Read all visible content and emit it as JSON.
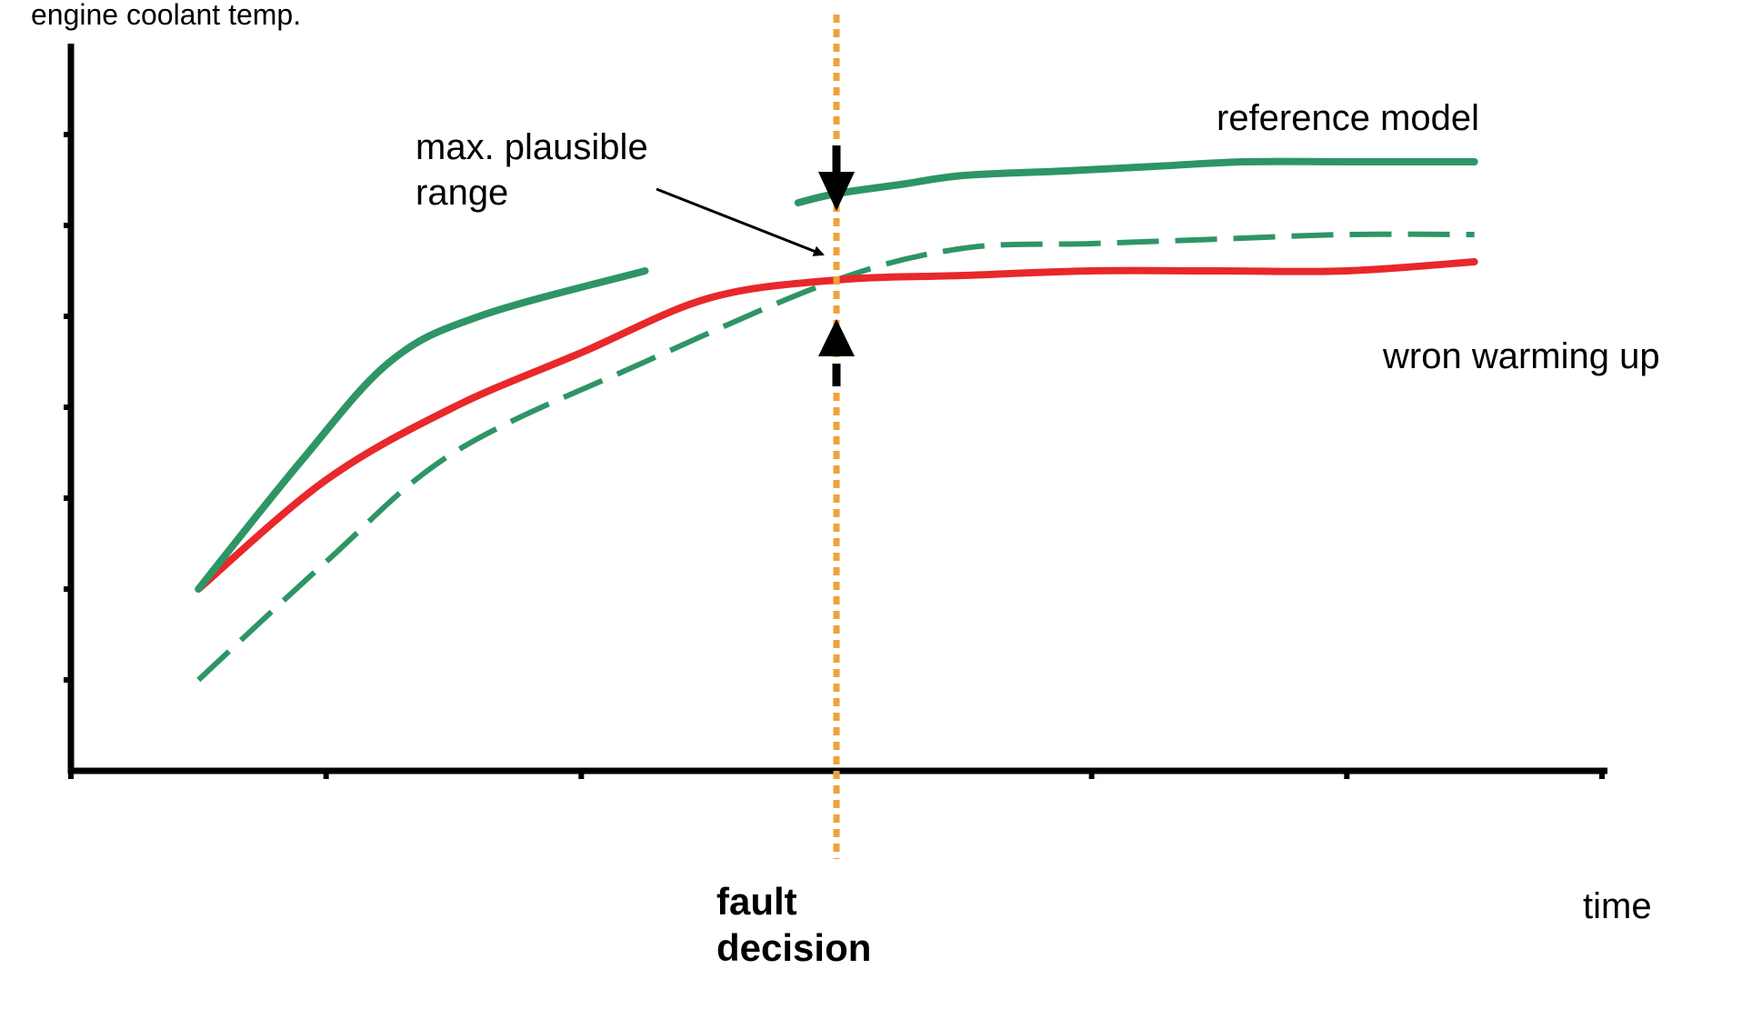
{
  "chart_data": {
    "type": "line",
    "ylabel": "engine coolant temp.",
    "xlabel": "time",
    "xlim": [
      0,
      12
    ],
    "ylim": [
      0,
      8
    ],
    "grid": false,
    "series": [
      {
        "name": "reference model",
        "color": "#2e9565",
        "style": "solid",
        "segments": [
          {
            "x": [
              1.0,
              1.8,
              2.5,
              3.2,
              4.5
            ],
            "y": [
              2.0,
              3.4,
              4.5,
              5.0,
              5.5
            ]
          },
          {
            "x": [
              5.7,
              6.0,
              6.5,
              7.0,
              7.8,
              8.5,
              9.2,
              10.0,
              11.0
            ],
            "y": [
              6.25,
              6.35,
              6.45,
              6.55,
              6.6,
              6.65,
              6.7,
              6.7,
              6.7
            ]
          }
        ]
      },
      {
        "name": "",
        "color": "#2e9565",
        "style": "dashed",
        "segments": [
          {
            "x": [
              1.0,
              2.0,
              3.0,
              4.5,
              6.0,
              7.0,
              8.0,
              9.0,
              10.0,
              11.0
            ],
            "y": [
              1.0,
              2.3,
              3.5,
              4.5,
              5.4,
              5.75,
              5.8,
              5.85,
              5.9,
              5.9
            ]
          }
        ]
      },
      {
        "name": "wron warming up",
        "color": "#e8282a",
        "style": "solid",
        "segments": [
          {
            "x": [
              1.0,
              2.0,
              3.0,
              4.0,
              5.0,
              6.0,
              7.0,
              8.0,
              9.0,
              10.0,
              11.0
            ],
            "y": [
              2.0,
              3.2,
              4.0,
              4.6,
              5.2,
              5.4,
              5.45,
              5.5,
              5.5,
              5.5,
              5.6
            ]
          }
        ]
      }
    ],
    "fault_decision": {
      "x": 6.0,
      "label_line1": "fault",
      "label_line2": "decision",
      "color": "#f0a23a"
    },
    "annotation": {
      "line1": "max. plausible",
      "line2": "range"
    }
  }
}
